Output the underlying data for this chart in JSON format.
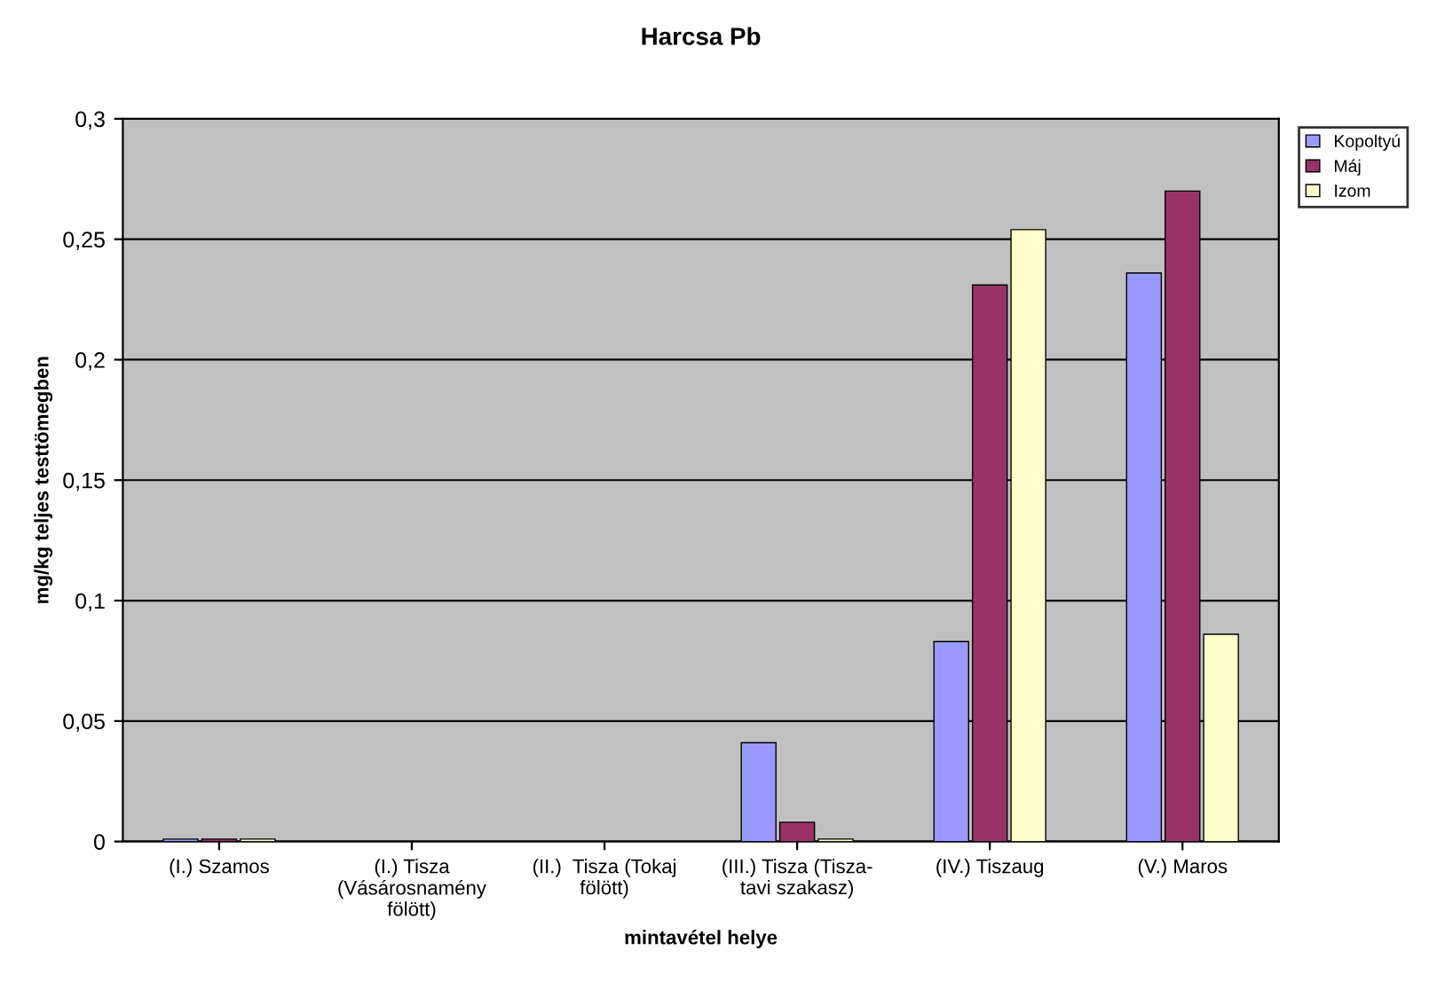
{
  "chart_data": {
    "type": "bar",
    "title": "Harcsa Pb",
    "xlabel": "mintavétel helye",
    "ylabel": "mg/kg teljes testtömegben",
    "categories": [
      "(I.) Szamos",
      "(I.) Tisza\n(Vásárosnamény\nfölött)",
      "(II.)  Tisza (Tokaj\nfölött)",
      "(III.) Tisza (Tisza-\ntavi szakasz)",
      "(IV.) Tiszaug",
      "(V.) Maros"
    ],
    "series": [
      {
        "name": "Kopoltyú",
        "color": "#9999ff",
        "values": [
          0.001,
          null,
          null,
          0.041,
          0.083,
          0.236
        ]
      },
      {
        "name": "Máj",
        "color": "#993366",
        "values": [
          0.001,
          null,
          null,
          0.008,
          0.231,
          0.27
        ]
      },
      {
        "name": "Izom",
        "color": "#ffffcc",
        "values": [
          0.001,
          null,
          null,
          0.001,
          0.254,
          0.086
        ]
      }
    ],
    "ylim": [
      0,
      0.3
    ],
    "yticks": [
      0,
      {
        "value": 0.05,
        "label": "0,05"
      },
      {
        "value": 0.1,
        "label": "0,1"
      },
      {
        "value": 0.15,
        "label": "0,15"
      },
      {
        "value": 0.2,
        "label": "0,2"
      },
      {
        "value": 0.25,
        "label": "0,25"
      },
      {
        "value": 0.3,
        "label": "0,3"
      }
    ],
    "grid": "y",
    "legend": "top right"
  }
}
